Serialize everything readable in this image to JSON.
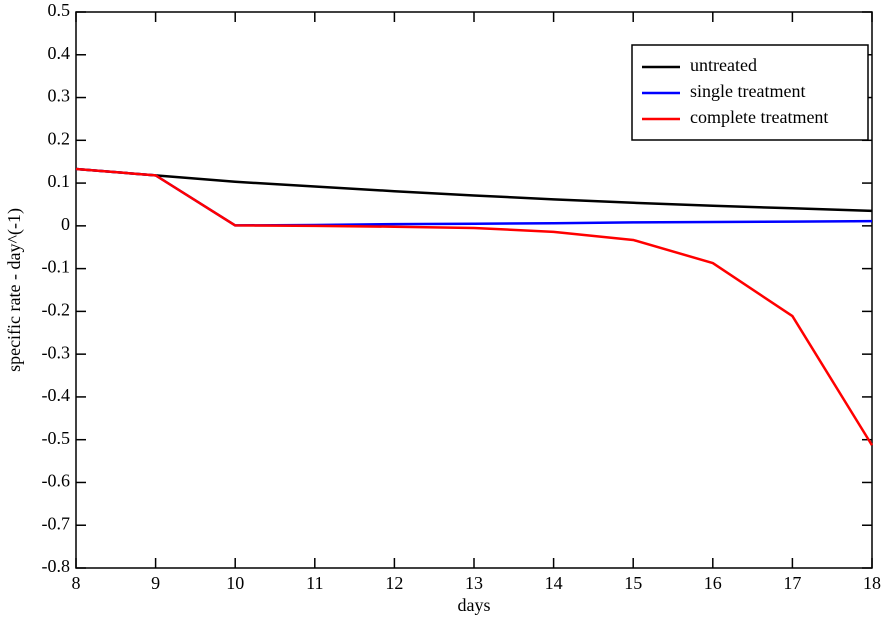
{
  "chart_data": {
    "type": "line",
    "x_label": "days",
    "y_label": "specific rate - day^(-1)",
    "x": [
      8,
      9,
      10,
      11,
      12,
      13,
      14,
      15,
      16,
      17,
      18
    ],
    "series": [
      {
        "name": "untreated",
        "color": "#000000",
        "values": [
          0.133,
          0.118,
          0.103,
          0.092,
          0.081,
          0.071,
          0.062,
          0.054,
          0.047,
          0.041,
          0.035
        ]
      },
      {
        "name": "single treatment",
        "color": "#0000ff",
        "values": [
          0.133,
          0.118,
          0.001,
          0.002,
          0.004,
          0.005,
          0.006,
          0.008,
          0.009,
          0.01,
          0.011
        ]
      },
      {
        "name": "complete treatment",
        "color": "#ff0000",
        "values": [
          0.133,
          0.118,
          0.001,
          0.0,
          -0.002,
          -0.005,
          -0.014,
          -0.033,
          -0.087,
          -0.211,
          -0.513
        ]
      }
    ],
    "xlim": [
      8,
      18
    ],
    "xticks": [
      8,
      9,
      10,
      11,
      12,
      13,
      14,
      15,
      16,
      17,
      18
    ],
    "ylim": [
      -0.8,
      0.5
    ],
    "yticks": [
      0.5,
      0.4,
      0.3,
      0.2,
      0.1,
      0,
      -0.1,
      -0.2,
      -0.3,
      -0.4,
      -0.5,
      -0.6,
      -0.7,
      -0.8
    ],
    "grid": false,
    "legend": "upper right"
  }
}
